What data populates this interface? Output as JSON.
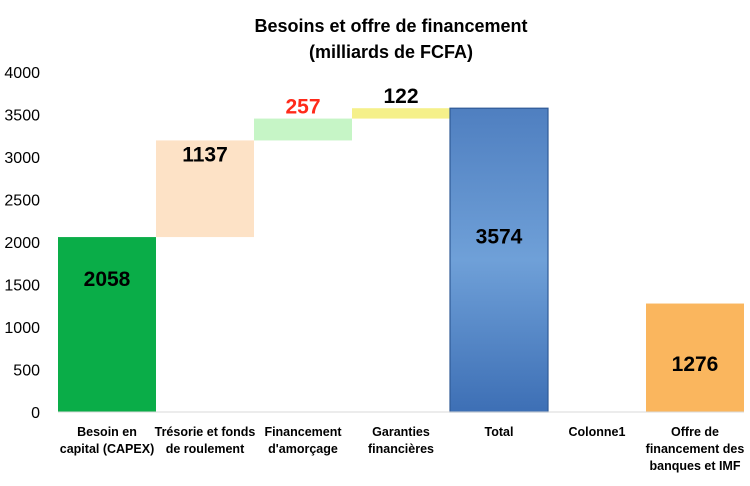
{
  "chart_data": {
    "type": "bar",
    "subtype": "waterfall",
    "title_lines": [
      "Besoins et offre de financement",
      "(milliards de FCFA)"
    ],
    "categories": [
      [
        "Besoin en",
        "capital (CAPEX)"
      ],
      [
        "Trésorie et fonds",
        "de roulement"
      ],
      [
        "Financement",
        "d'amorçage"
      ],
      [
        "Garanties",
        "financières"
      ],
      [
        "Total"
      ],
      [
        "Colonne1"
      ],
      [
        "Offre de",
        "financement des",
        "banques et IMF"
      ]
    ],
    "bars": [
      {
        "start": 0,
        "end": 2058,
        "label": "2058",
        "color": "#0aad48",
        "label_color": "#000000"
      },
      {
        "start": 2058,
        "end": 3195,
        "label": "1137",
        "color": "#fde2c6",
        "label_color": "#000000"
      },
      {
        "start": 3195,
        "end": 3452,
        "label": "257",
        "color": "#c6f5c6",
        "label_color": "#ff2a1a"
      },
      {
        "start": 3452,
        "end": 3574,
        "label": "122",
        "color": "#f5f08a",
        "label_color": "#000000"
      },
      {
        "start": 0,
        "end": 3574,
        "label": "3574",
        "color": "#5f93cf",
        "label_color": "#000000",
        "gradient": true
      },
      {
        "start": 0,
        "end": 0,
        "label": "",
        "color": "none",
        "label_color": "#000000"
      },
      {
        "start": 0,
        "end": 1276,
        "label": "1276",
        "color": "#fab65e",
        "label_color": "#000000"
      }
    ],
    "yticks": [
      "0",
      "500",
      "1000",
      "1500",
      "2000",
      "2500",
      "3000",
      "3500",
      "4000"
    ],
    "ylim": [
      0,
      4000
    ],
    "grid": false,
    "legend": "none"
  }
}
